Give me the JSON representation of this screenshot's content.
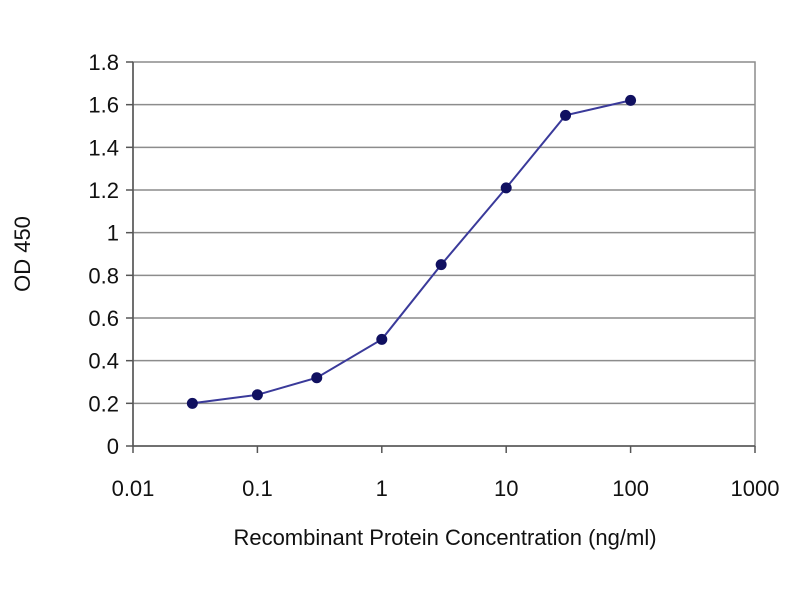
{
  "chart_data": {
    "type": "line",
    "title": "",
    "xlabel": "Recombinant Protein Concentration (ng/ml)",
    "ylabel": "OD 450",
    "x_scale": "log",
    "xlim": [
      0.01,
      1000
    ],
    "ylim": [
      0,
      1.8
    ],
    "x_ticks": [
      "0.01",
      "0.1",
      "1",
      "10",
      "100",
      "1000"
    ],
    "y_ticks": [
      "0",
      "0.2",
      "0.4",
      "0.6",
      "0.8",
      "1",
      "1.2",
      "1.4",
      "1.6",
      "1.8"
    ],
    "grid": "horizontal",
    "legend": "none",
    "series": [
      {
        "x": [
          0.03,
          0.1,
          0.3,
          1,
          3,
          10,
          30,
          100
        ],
        "y": [
          0.2,
          0.24,
          0.32,
          0.5,
          0.85,
          1.21,
          1.55,
          1.62
        ]
      }
    ],
    "line_color": "#3a3a9a",
    "marker_color": "#101060",
    "grid_color": "#8c8c8c",
    "plot_border_color": "#8c8c8c"
  }
}
